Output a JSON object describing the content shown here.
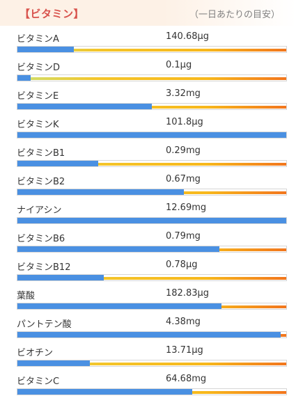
{
  "header": {
    "title": "【ビタミン】",
    "note": "（一日あたりの目安）"
  },
  "rows": [
    {
      "name": "ビタミンA",
      "amount": "140.68μg",
      "percent": 21
    },
    {
      "name": "ビタミンD",
      "amount": "0.1μg",
      "percent": 5
    },
    {
      "name": "ビタミンE",
      "amount": "3.32mg",
      "percent": 50
    },
    {
      "name": "ビタミンK",
      "amount": "101.8μg",
      "percent": 100
    },
    {
      "name": "ビタミンB1",
      "amount": "0.29mg",
      "percent": 30
    },
    {
      "name": "ビタミンB2",
      "amount": "0.67mg",
      "percent": 62
    },
    {
      "name": "ナイアシン",
      "amount": "12.69mg",
      "percent": 100
    },
    {
      "name": "ビタミンB6",
      "amount": "0.79mg",
      "percent": 75
    },
    {
      "name": "ビタミンB12",
      "amount": "0.78μg",
      "percent": 32
    },
    {
      "name": "葉酸",
      "amount": "182.83μg",
      "percent": 76
    },
    {
      "name": "パントテン酸",
      "amount": "4.38mg",
      "percent": 98
    },
    {
      "name": "ビオチン",
      "amount": "13.71μg",
      "percent": 27
    },
    {
      "name": "ビタミンC",
      "amount": "64.68mg",
      "percent": 65
    }
  ]
}
